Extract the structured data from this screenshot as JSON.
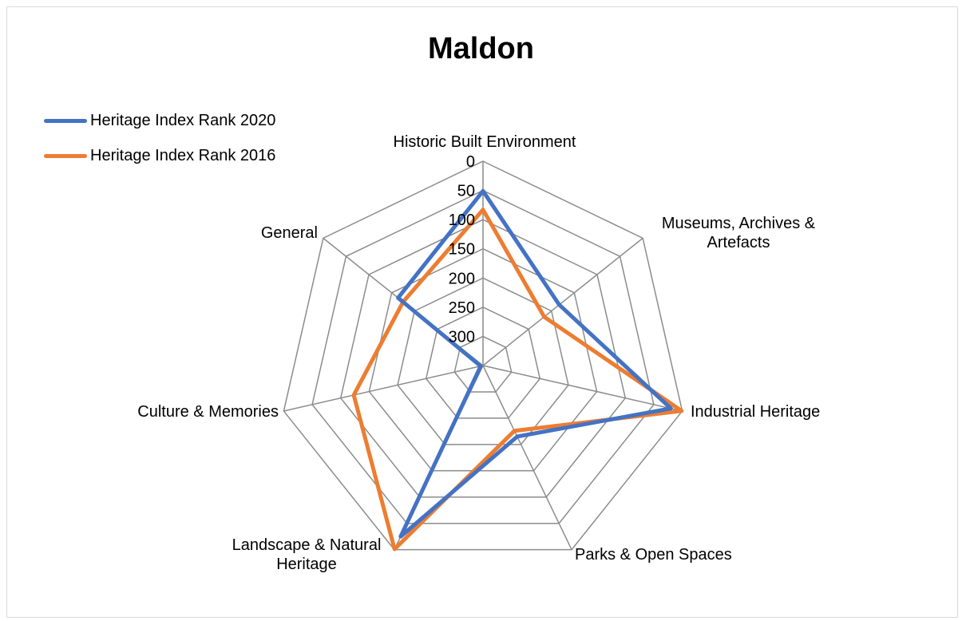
{
  "chart_data": {
    "type": "radar",
    "title": "Maldon",
    "categories": [
      "Historic Built Environment",
      "Museums, Archives & Artefacts",
      "Industrial Heritage",
      "Parks & Open Spaces",
      "Landscape & Natural Heritage",
      "Culture & Memories",
      "General"
    ],
    "axis_reversed": true,
    "rlim": [
      0,
      350
    ],
    "ticks": [
      0,
      50,
      100,
      150,
      200,
      250,
      300
    ],
    "grid": true,
    "legend_position": "top-left",
    "series": [
      {
        "name": "Heritage Index Rank 2020",
        "color": "#4472c4",
        "values": [
          51,
          183,
          20,
          215,
          25,
          346,
          164
        ]
      },
      {
        "name": "Heritage Index Rank 2016",
        "color": "#ed7d31",
        "values": [
          83,
          216,
          1,
          226,
          1,
          123,
          175
        ]
      }
    ]
  }
}
